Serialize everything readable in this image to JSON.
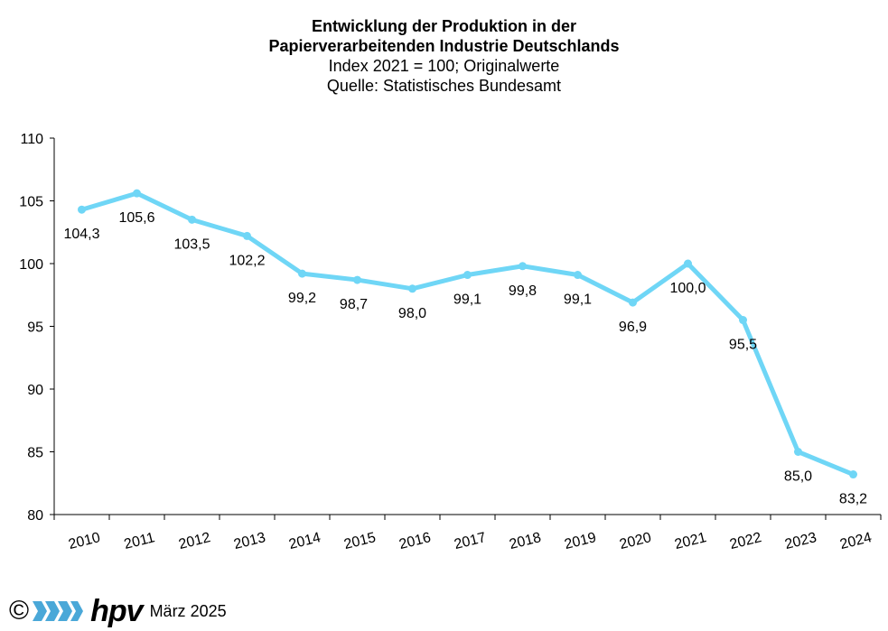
{
  "header": {
    "title_line1": "Entwicklung der Produktion in der",
    "title_line2": "Papierverarbeitenden Industrie Deutschlands",
    "subtitle1": "Index 2021 = 100; Originalwerte",
    "subtitle2": "Quelle: Statistisches Bundesamt"
  },
  "chart_data": {
    "type": "line",
    "title": "Entwicklung der Produktion in der Papierverarbeitenden Industrie Deutschlands",
    "subtitle": "Index 2021 = 100; Originalwerte",
    "categories": [
      "2010",
      "2011",
      "2012",
      "2013",
      "2014",
      "2015",
      "2016",
      "2017",
      "2018",
      "2019",
      "2020",
      "2021",
      "2022",
      "2023",
      "2024"
    ],
    "series": [
      {
        "values": [
          104.3,
          105.6,
          103.5,
          102.2,
          99.2,
          98.7,
          98.0,
          99.1,
          99.8,
          99.1,
          96.9,
          100.0,
          95.5,
          85.0,
          83.2
        ],
        "labels": [
          "104,3",
          "105,6",
          "103,5",
          "102,2",
          "99,2",
          "98,7",
          "98,0",
          "99,1",
          "99,8",
          "99,1",
          "96,9",
          "100,0",
          "95,5",
          "85,0",
          "83,2"
        ],
        "color": "#6fd6f6"
      }
    ],
    "ylim": [
      80,
      110
    ],
    "yticks": [
      "80",
      "85",
      "90",
      "95",
      "100",
      "105",
      "110"
    ],
    "grid": false,
    "legend": "none"
  },
  "footer": {
    "copyright_symbol": "©",
    "logo_text": "hpv",
    "date": "März 2025"
  }
}
